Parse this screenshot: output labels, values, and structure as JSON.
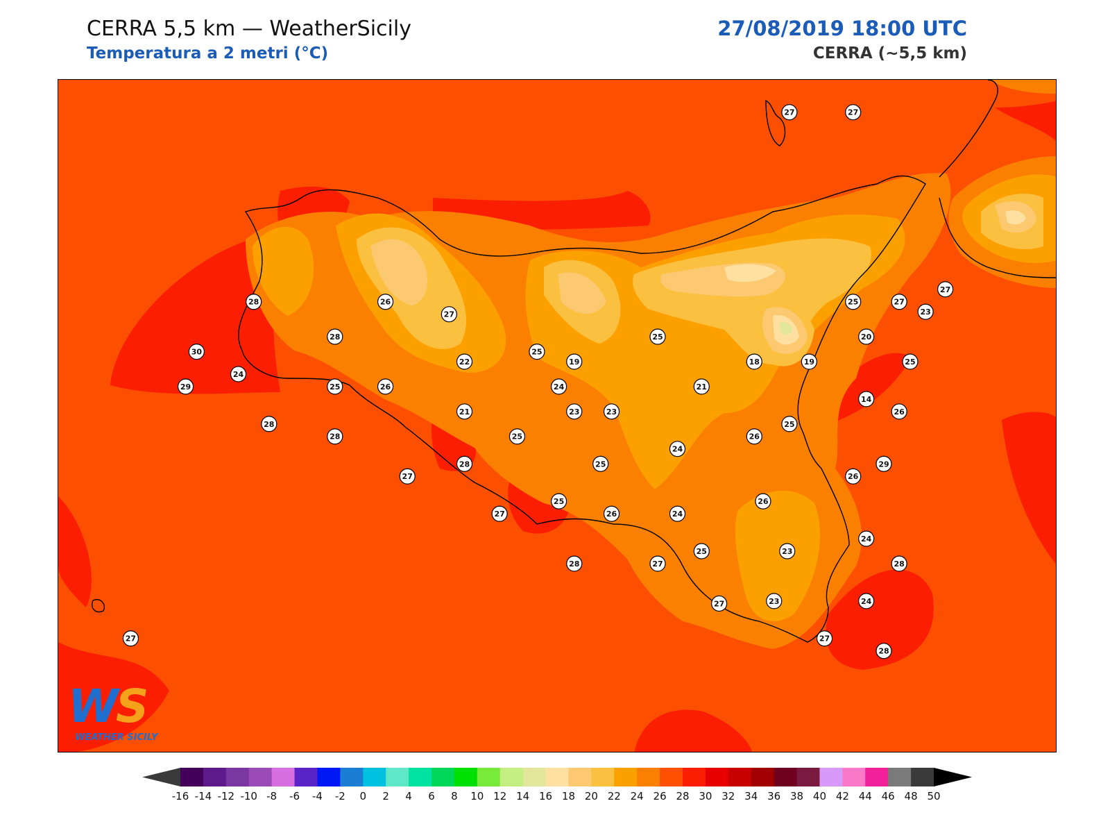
{
  "header": {
    "title": "CERRA 5,5 km — WeatherSicily",
    "subtitle": "Temperatura a 2 metri (°C)",
    "datetime": "27/08/2019 18:00 UTC",
    "model": "CERRA (~5,5 km)"
  },
  "logo": {
    "mark_w": "W",
    "mark_s": "S",
    "text": "WEATHER SICILY"
  },
  "stations": [
    {
      "value": "27",
      "lon": 14.93,
      "lat": 38.92
    },
    {
      "value": "27",
      "lon": 15.22,
      "lat": 38.92
    },
    {
      "value": "28",
      "lon": 12.49,
      "lat": 38.16
    },
    {
      "value": "26",
      "lon": 13.09,
      "lat": 38.16
    },
    {
      "value": "27",
      "lon": 13.38,
      "lat": 38.11
    },
    {
      "value": "25",
      "lon": 15.22,
      "lat": 38.16
    },
    {
      "value": "27",
      "lon": 15.43,
      "lat": 38.16
    },
    {
      "value": "27",
      "lon": 15.64,
      "lat": 38.21
    },
    {
      "value": "23",
      "lon": 15.55,
      "lat": 38.12
    },
    {
      "value": "28",
      "lon": 12.86,
      "lat": 38.02
    },
    {
      "value": "25",
      "lon": 14.33,
      "lat": 38.02
    },
    {
      "value": "30",
      "lon": 12.23,
      "lat": 37.96
    },
    {
      "value": "20",
      "lon": 15.28,
      "lat": 38.02
    },
    {
      "value": "25",
      "lon": 13.78,
      "lat": 37.96
    },
    {
      "value": "22",
      "lon": 13.45,
      "lat": 37.92
    },
    {
      "value": "19",
      "lon": 13.95,
      "lat": 37.92
    },
    {
      "value": "18",
      "lon": 14.77,
      "lat": 37.92
    },
    {
      "value": "19",
      "lon": 15.02,
      "lat": 37.92
    },
    {
      "value": "25",
      "lon": 15.48,
      "lat": 37.92
    },
    {
      "value": "24",
      "lon": 12.42,
      "lat": 37.87
    },
    {
      "value": "29",
      "lon": 12.18,
      "lat": 37.82
    },
    {
      "value": "25",
      "lon": 12.86,
      "lat": 37.82
    },
    {
      "value": "26",
      "lon": 13.09,
      "lat": 37.82
    },
    {
      "value": "24",
      "lon": 13.88,
      "lat": 37.82
    },
    {
      "value": "21",
      "lon": 14.53,
      "lat": 37.82
    },
    {
      "value": "14",
      "lon": 15.28,
      "lat": 37.77
    },
    {
      "value": "21",
      "lon": 13.45,
      "lat": 37.72
    },
    {
      "value": "23",
      "lon": 13.95,
      "lat": 37.72
    },
    {
      "value": "23",
      "lon": 14.12,
      "lat": 37.72
    },
    {
      "value": "26",
      "lon": 15.43,
      "lat": 37.72
    },
    {
      "value": "28",
      "lon": 12.56,
      "lat": 37.67
    },
    {
      "value": "25",
      "lon": 14.93,
      "lat": 37.67
    },
    {
      "value": "28",
      "lon": 12.86,
      "lat": 37.62
    },
    {
      "value": "25",
      "lon": 13.69,
      "lat": 37.62
    },
    {
      "value": "26",
      "lon": 14.77,
      "lat": 37.62
    },
    {
      "value": "24",
      "lon": 14.42,
      "lat": 37.57
    },
    {
      "value": "29",
      "lon": 15.36,
      "lat": 37.51
    },
    {
      "value": "28",
      "lon": 13.45,
      "lat": 37.51
    },
    {
      "value": "25",
      "lon": 14.07,
      "lat": 37.51
    },
    {
      "value": "27",
      "lon": 13.19,
      "lat": 37.46
    },
    {
      "value": "26",
      "lon": 15.22,
      "lat": 37.46
    },
    {
      "value": "25",
      "lon": 13.88,
      "lat": 37.36
    },
    {
      "value": "26",
      "lon": 14.81,
      "lat": 37.36
    },
    {
      "value": "26",
      "lon": 14.12,
      "lat": 37.31
    },
    {
      "value": "24",
      "lon": 14.42,
      "lat": 37.31
    },
    {
      "value": "27",
      "lon": 13.61,
      "lat": 37.31
    },
    {
      "value": "24",
      "lon": 15.28,
      "lat": 37.21
    },
    {
      "value": "25",
      "lon": 14.53,
      "lat": 37.16
    },
    {
      "value": "23",
      "lon": 14.92,
      "lat": 37.16
    },
    {
      "value": "28",
      "lon": 13.95,
      "lat": 37.11
    },
    {
      "value": "27",
      "lon": 14.33,
      "lat": 37.11
    },
    {
      "value": "28",
      "lon": 15.43,
      "lat": 37.11
    },
    {
      "value": "23",
      "lon": 14.86,
      "lat": 36.96
    },
    {
      "value": "24",
      "lon": 15.28,
      "lat": 36.96
    },
    {
      "value": "27",
      "lon": 14.61,
      "lat": 36.95
    },
    {
      "value": "27",
      "lon": 11.93,
      "lat": 36.81
    },
    {
      "value": "27",
      "lon": 15.09,
      "lat": 36.81
    },
    {
      "value": "28",
      "lon": 15.36,
      "lat": 36.76
    }
  ],
  "colorbar": {
    "colors": [
      "#3a3a3a",
      "#45005a",
      "#5e1a8b",
      "#7a37a1",
      "#9b4bb8",
      "#d86fe0",
      "#5a24c8",
      "#0018f5",
      "#1a7fd4",
      "#00c2e0",
      "#5fe8c8",
      "#00e2a0",
      "#00d65a",
      "#00e000",
      "#78ea3a",
      "#c2ee82",
      "#e2e69a",
      "#ffe0a0",
      "#fcc870",
      "#fcc040",
      "#fca000",
      "#fc8000",
      "#fc5000",
      "#fc1e00",
      "#e80000",
      "#c80000",
      "#a00000",
      "#700020",
      "#7a1a40",
      "#d89af8",
      "#fc78c8",
      "#f0209a",
      "#7a7a7a",
      "#3a3a3a",
      "#000000"
    ],
    "ticks": [
      "-16",
      "-14",
      "-12",
      "-10",
      "-8",
      "-6",
      "-4",
      "-2",
      "0",
      "2",
      "4",
      "6",
      "8",
      "10",
      "12",
      "14",
      "16",
      "18",
      "20",
      "22",
      "24",
      "26",
      "28",
      "30",
      "32",
      "34",
      "36",
      "38",
      "40",
      "42",
      "44",
      "46",
      "48",
      "50"
    ]
  }
}
